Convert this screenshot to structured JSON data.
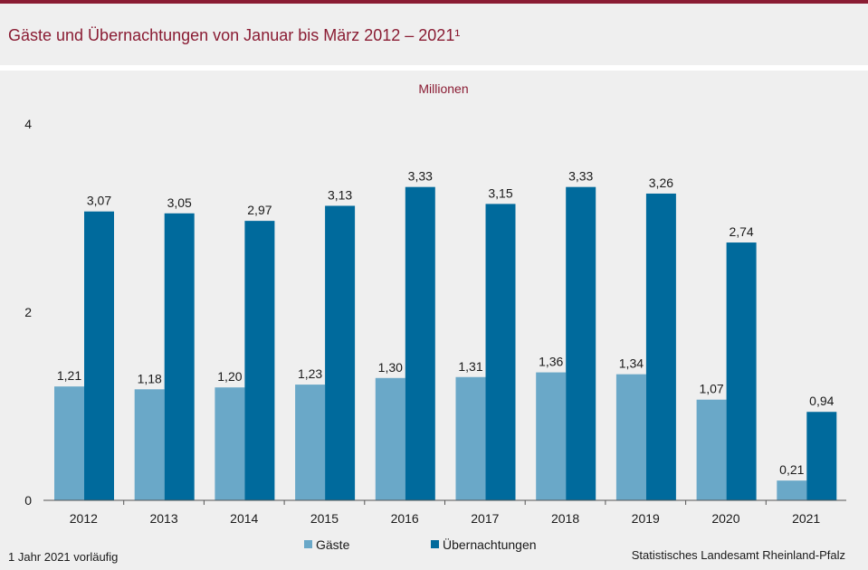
{
  "header": {
    "title": "Gäste und Übernachtungen von Januar bis März 2012 – 2021¹"
  },
  "footer": {
    "footnote": "1 Jahr 2021 vorläufig",
    "source": "Statistisches Landesamt  Rheinland-Pfalz"
  },
  "colors": {
    "accent": "#8a1c33",
    "gaeste": "#6aa8c8",
    "uebernachtungen": "#006a9c",
    "background": "#efefef"
  },
  "chart_data": {
    "type": "bar",
    "title": "Gäste und Übernachtungen von Januar bis März 2012 – 2021¹",
    "unit_label": "Millionen",
    "xlabel": "",
    "ylabel": "",
    "ylim": [
      0,
      4
    ],
    "yticks": [
      "0",
      "2",
      "4"
    ],
    "ytick_values": [
      0,
      2,
      4
    ],
    "grid": false,
    "legend_position": "bottom",
    "categories": [
      "2012",
      "2013",
      "2014",
      "2015",
      "2016",
      "2017",
      "2018",
      "2019",
      "2020",
      "2021"
    ],
    "series": [
      {
        "name": "Gäste",
        "color": "#6aa8c8",
        "values": [
          1.21,
          1.18,
          1.2,
          1.23,
          1.3,
          1.31,
          1.36,
          1.34,
          1.07,
          0.21
        ],
        "labels": [
          "1,21",
          "1,18",
          "1,20",
          "1,23",
          "1,30",
          "1,31",
          "1,36",
          "1,34",
          "1,07",
          "0,21"
        ]
      },
      {
        "name": "Übernachtungen",
        "color": "#006a9c",
        "values": [
          3.07,
          3.05,
          2.97,
          3.13,
          3.33,
          3.15,
          3.33,
          3.26,
          2.74,
          0.94
        ],
        "labels": [
          "3,07",
          "3,05",
          "2,97",
          "3,13",
          "3,33",
          "3,15",
          "3,33",
          "3,26",
          "2,74",
          "0,94"
        ]
      }
    ]
  }
}
